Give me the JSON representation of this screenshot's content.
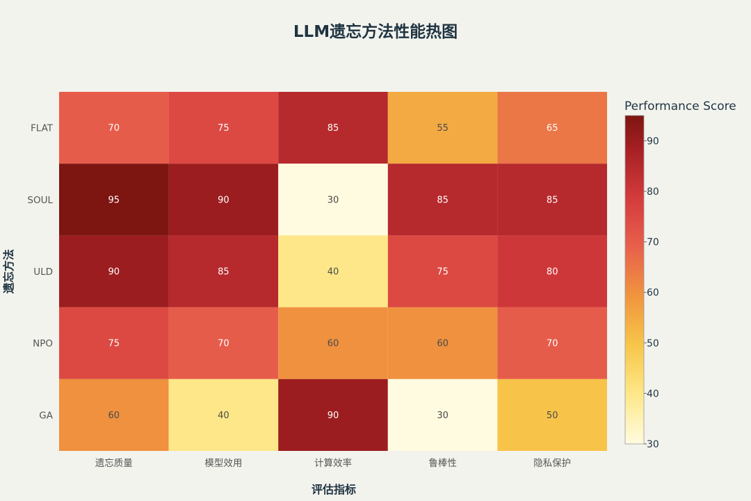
{
  "chart_data": {
    "type": "heatmap",
    "title": "LLM遗忘方法性能热图",
    "xlabel": "评估指标",
    "ylabel": "遗忘方法",
    "x_categories": [
      "遗忘质量",
      "模型效用",
      "计算效率",
      "鲁棒性",
      "隐私保护"
    ],
    "y_categories": [
      "FLAT",
      "SOUL",
      "ULD",
      "NPO",
      "GA"
    ],
    "values": [
      [
        70,
        75,
        85,
        55,
        65
      ],
      [
        95,
        90,
        30,
        85,
        85
      ],
      [
        90,
        85,
        40,
        75,
        80
      ],
      [
        75,
        70,
        60,
        60,
        70
      ],
      [
        60,
        40,
        90,
        30,
        50
      ]
    ],
    "colorbar": {
      "title": "Performance Score",
      "range": [
        30,
        95
      ],
      "ticks": [
        30,
        40,
        50,
        60,
        70,
        80,
        90
      ]
    },
    "colorscale": [
      [
        0.0,
        "#fffbe0"
      ],
      [
        0.15,
        "#fee88a"
      ],
      [
        0.3,
        "#f7c64a"
      ],
      [
        0.45,
        "#f0953e"
      ],
      [
        0.6,
        "#e8604c"
      ],
      [
        0.75,
        "#d43b3c"
      ],
      [
        0.9,
        "#a51f23"
      ],
      [
        1.0,
        "#7d1510"
      ]
    ]
  }
}
